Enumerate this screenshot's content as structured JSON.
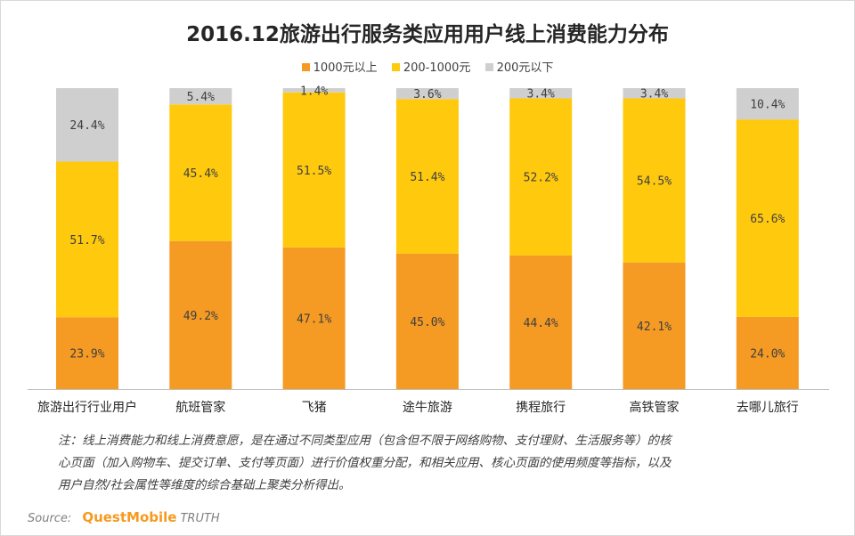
{
  "chart_data": {
    "type": "bar",
    "stacked": true,
    "normalized": true,
    "title": "2016.12旅游出行服务类应用用户线上消费能力分布",
    "categories": [
      "旅游出行行业用户",
      "航班管家",
      "飞猪",
      "途牛旅游",
      "携程旅行",
      "高铁管家",
      "去哪儿旅行"
    ],
    "series": [
      {
        "name": "1000元以上",
        "color": "#f59a23",
        "values": [
          23.9,
          49.2,
          47.1,
          45.0,
          44.4,
          42.1,
          24.0
        ],
        "labels": [
          "23.9%",
          "49.2%",
          "47.1%",
          "45.0%",
          "44.4%",
          "42.1%",
          "24.0%"
        ]
      },
      {
        "name": "200-1000元",
        "color": "#ffc90e",
        "values": [
          51.7,
          45.4,
          51.5,
          51.4,
          52.2,
          54.5,
          65.6
        ],
        "labels": [
          "51.7%",
          "45.4%",
          "51.5%",
          "51.4%",
          "52.2%",
          "54.5%",
          "65.6%"
        ]
      },
      {
        "name": "200元以下",
        "color": "#cfcfcf",
        "values": [
          24.4,
          5.4,
          1.4,
          3.6,
          3.4,
          3.4,
          10.4
        ],
        "labels": [
          "24.4%",
          "5.4%",
          "1.4%",
          "3.6%",
          "3.4%",
          "3.4%",
          "10.4%"
        ]
      }
    ],
    "legend_position": "top",
    "grid": false,
    "ylim": [
      0,
      100
    ]
  },
  "note": {
    "lines": [
      "注：线上消费能力和线上消费意愿，是在通过不同类型应用（包含但不限于网络购物、支付理财、生活服务等）的核",
      "心页面（加入购物车、提交订单、支付等页面）进行价值权重分配，和相关应用、核心页面的使用频度等指标，以及",
      "用户自然/社会属性等维度的综合基础上聚类分析得出。"
    ]
  },
  "source": {
    "label": "Source:",
    "brand": "QuestMobile",
    "suffix": "TRUTH"
  }
}
